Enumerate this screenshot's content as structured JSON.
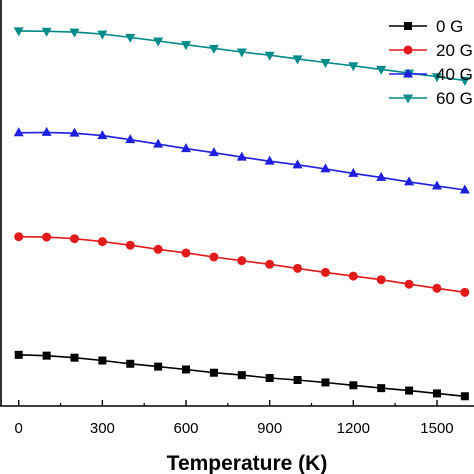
{
  "chart_data": {
    "type": "line",
    "xlabel": "Temperature (K)",
    "ylabel": "",
    "xlim": [
      -60,
      1640
    ],
    "ylim": [
      0,
      100
    ],
    "xticks": [
      0,
      300,
      600,
      900,
      1200,
      1500
    ],
    "x": [
      0,
      100,
      200,
      300,
      400,
      500,
      600,
      700,
      800,
      900,
      1000,
      1100,
      1200,
      1300,
      1400,
      1500,
      1600
    ],
    "legend_position": "top-right",
    "series": [
      {
        "name": "0 G",
        "color": "#000000",
        "marker": "square",
        "values": [
          12.6,
          12.4,
          11.9,
          11.2,
          10.4,
          9.7,
          9.0,
          8.2,
          7.6,
          6.9,
          6.4,
          5.8,
          5.1,
          4.4,
          3.8,
          3.1,
          2.4
        ]
      },
      {
        "name": "20 G",
        "color": "#e31a1c",
        "marker": "circle",
        "values": [
          41.7,
          41.6,
          41.2,
          40.5,
          39.6,
          38.6,
          37.7,
          36.7,
          35.8,
          34.9,
          33.9,
          32.9,
          32.0,
          31.1,
          30.0,
          29.0,
          28.0
        ]
      },
      {
        "name": "40 G",
        "color": "#1f1fe0",
        "marker": "triangle-up",
        "values": [
          67.3,
          67.4,
          67.2,
          66.6,
          65.6,
          64.5,
          63.4,
          62.4,
          61.3,
          60.3,
          59.4,
          58.4,
          57.3,
          56.3,
          55.2,
          54.2,
          53.2
        ]
      },
      {
        "name": "60 G",
        "color": "#008b8b",
        "marker": "triangle-down",
        "values": [
          92.4,
          92.3,
          92.1,
          91.6,
          90.8,
          89.9,
          89.0,
          88.1,
          87.2,
          86.4,
          85.5,
          84.6,
          83.8,
          82.9,
          82.0,
          81.1,
          80.2
        ]
      }
    ]
  }
}
